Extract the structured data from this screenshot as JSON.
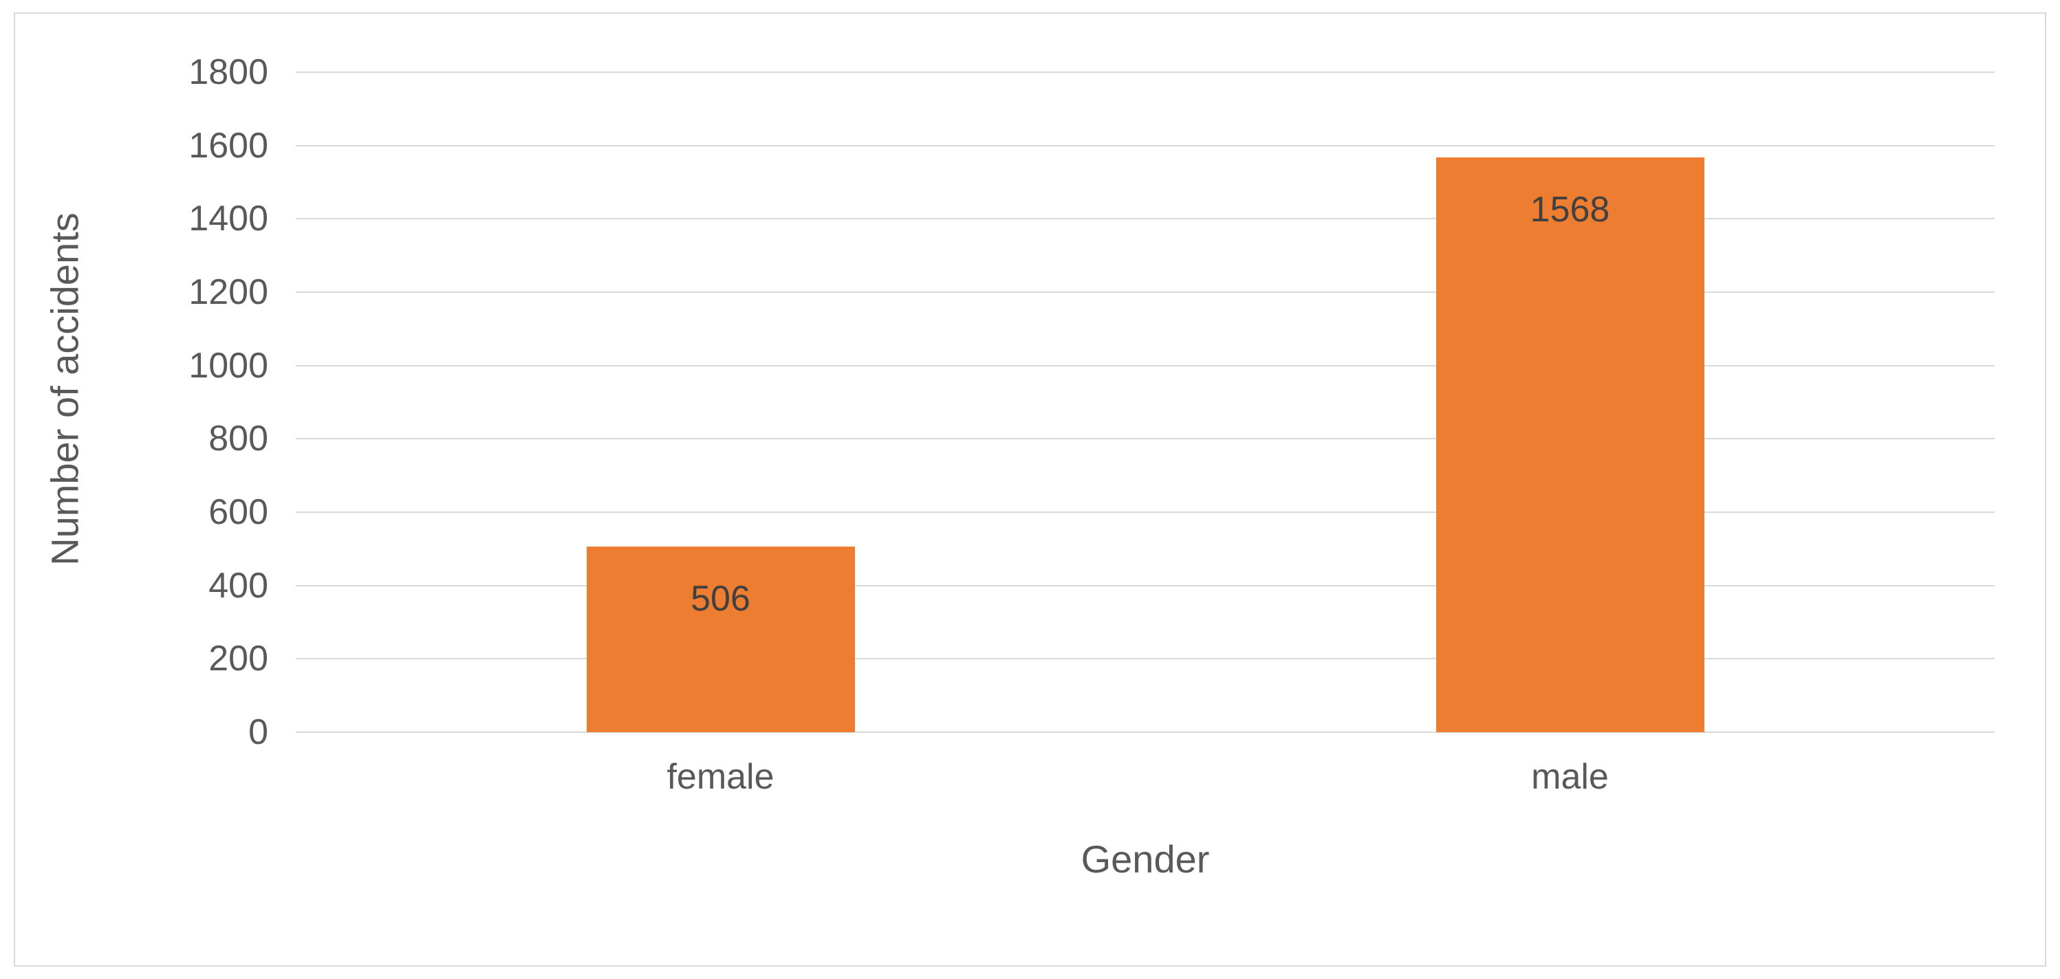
{
  "chart_data": {
    "type": "bar",
    "categories": [
      "female",
      "male"
    ],
    "values": [
      506,
      1568
    ],
    "data_labels": [
      "506",
      "1568"
    ],
    "title": "",
    "xlabel": "Gender",
    "ylabel": "Number of accidents",
    "ylim": [
      0,
      1800
    ],
    "ytick_interval": 200,
    "yticks": [
      0,
      200,
      400,
      600,
      800,
      1000,
      1200,
      1400,
      1600,
      1800
    ],
    "grid": true,
    "legend": "none",
    "colors": {
      "bar": "#ED7D31",
      "gridline": "#D9D9D9",
      "axis_text": "#595959",
      "data_label_text": "#404040",
      "background": "#FFFFFF",
      "frame_border": "#D9D9D9"
    }
  }
}
